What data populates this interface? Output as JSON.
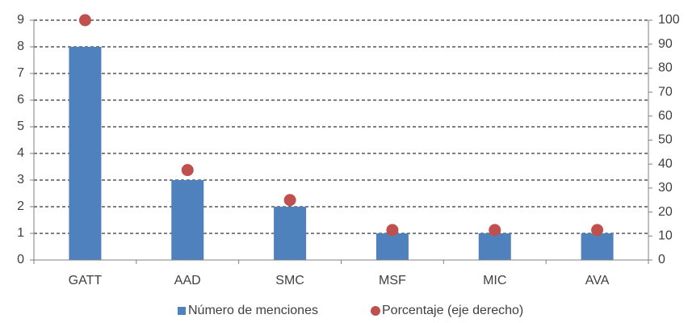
{
  "chart_data": {
    "type": "bar",
    "categories": [
      "GATT",
      "AAD",
      "SMC",
      "MSF",
      "MIC",
      "AVA"
    ],
    "series": [
      {
        "name": "Número de menciones",
        "type": "bar",
        "color": "#4f81bd",
        "values": [
          8,
          3,
          2,
          1,
          1,
          1
        ]
      },
      {
        "name": "Porcentaje (eje derecho)",
        "type": "scatter",
        "axis": "y2",
        "color": "#c0504d",
        "values": [
          100,
          37.5,
          25,
          12.5,
          12.5,
          12.5
        ]
      }
    ],
    "ylim": [
      0,
      9
    ],
    "yticks": [
      0,
      1,
      2,
      3,
      4,
      5,
      6,
      7,
      8,
      9
    ],
    "y2lim": [
      0,
      100
    ],
    "y2ticks": [
      0,
      10,
      20,
      30,
      40,
      50,
      60,
      70,
      80,
      90,
      100
    ],
    "grid": true,
    "legend": "bottom"
  }
}
